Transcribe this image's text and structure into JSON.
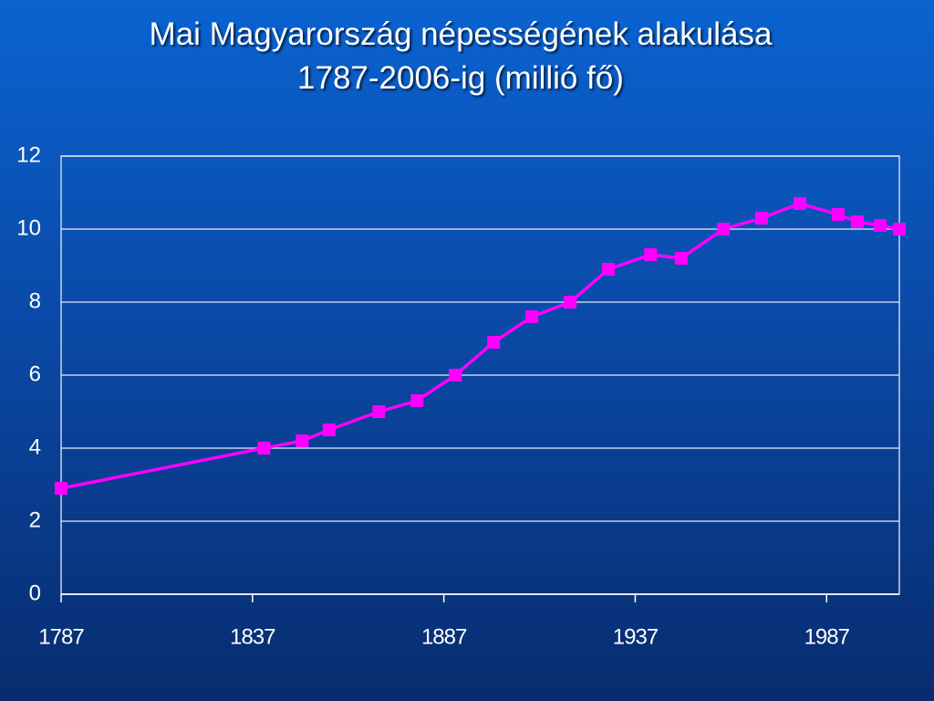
{
  "chart_data": {
    "type": "line",
    "title": "Mai Magyarország népességének alakulása\n1787-2006-ig (millió fő)",
    "x": [
      1787,
      1840,
      1850,
      1857,
      1870,
      1880,
      1890,
      1900,
      1910,
      1920,
      1930,
      1941,
      1949,
      1960,
      1970,
      1980,
      1990,
      1995,
      2001,
      2006
    ],
    "series": [
      {
        "color": "#ff00ff",
        "values": [
          2.9,
          4.0,
          4.2,
          4.5,
          5.0,
          5.3,
          6.0,
          6.9,
          7.6,
          8.0,
          8.9,
          9.3,
          9.2,
          10.0,
          10.3,
          10.7,
          10.4,
          10.2,
          10.1,
          10.0
        ]
      }
    ],
    "xlim": [
      1787,
      2006
    ],
    "xticks": [
      1787,
      1837,
      1887,
      1937,
      1987
    ],
    "ylim": [
      0,
      12
    ],
    "yticks": [
      0,
      2,
      4,
      6,
      8,
      10,
      12
    ],
    "grid": true
  }
}
